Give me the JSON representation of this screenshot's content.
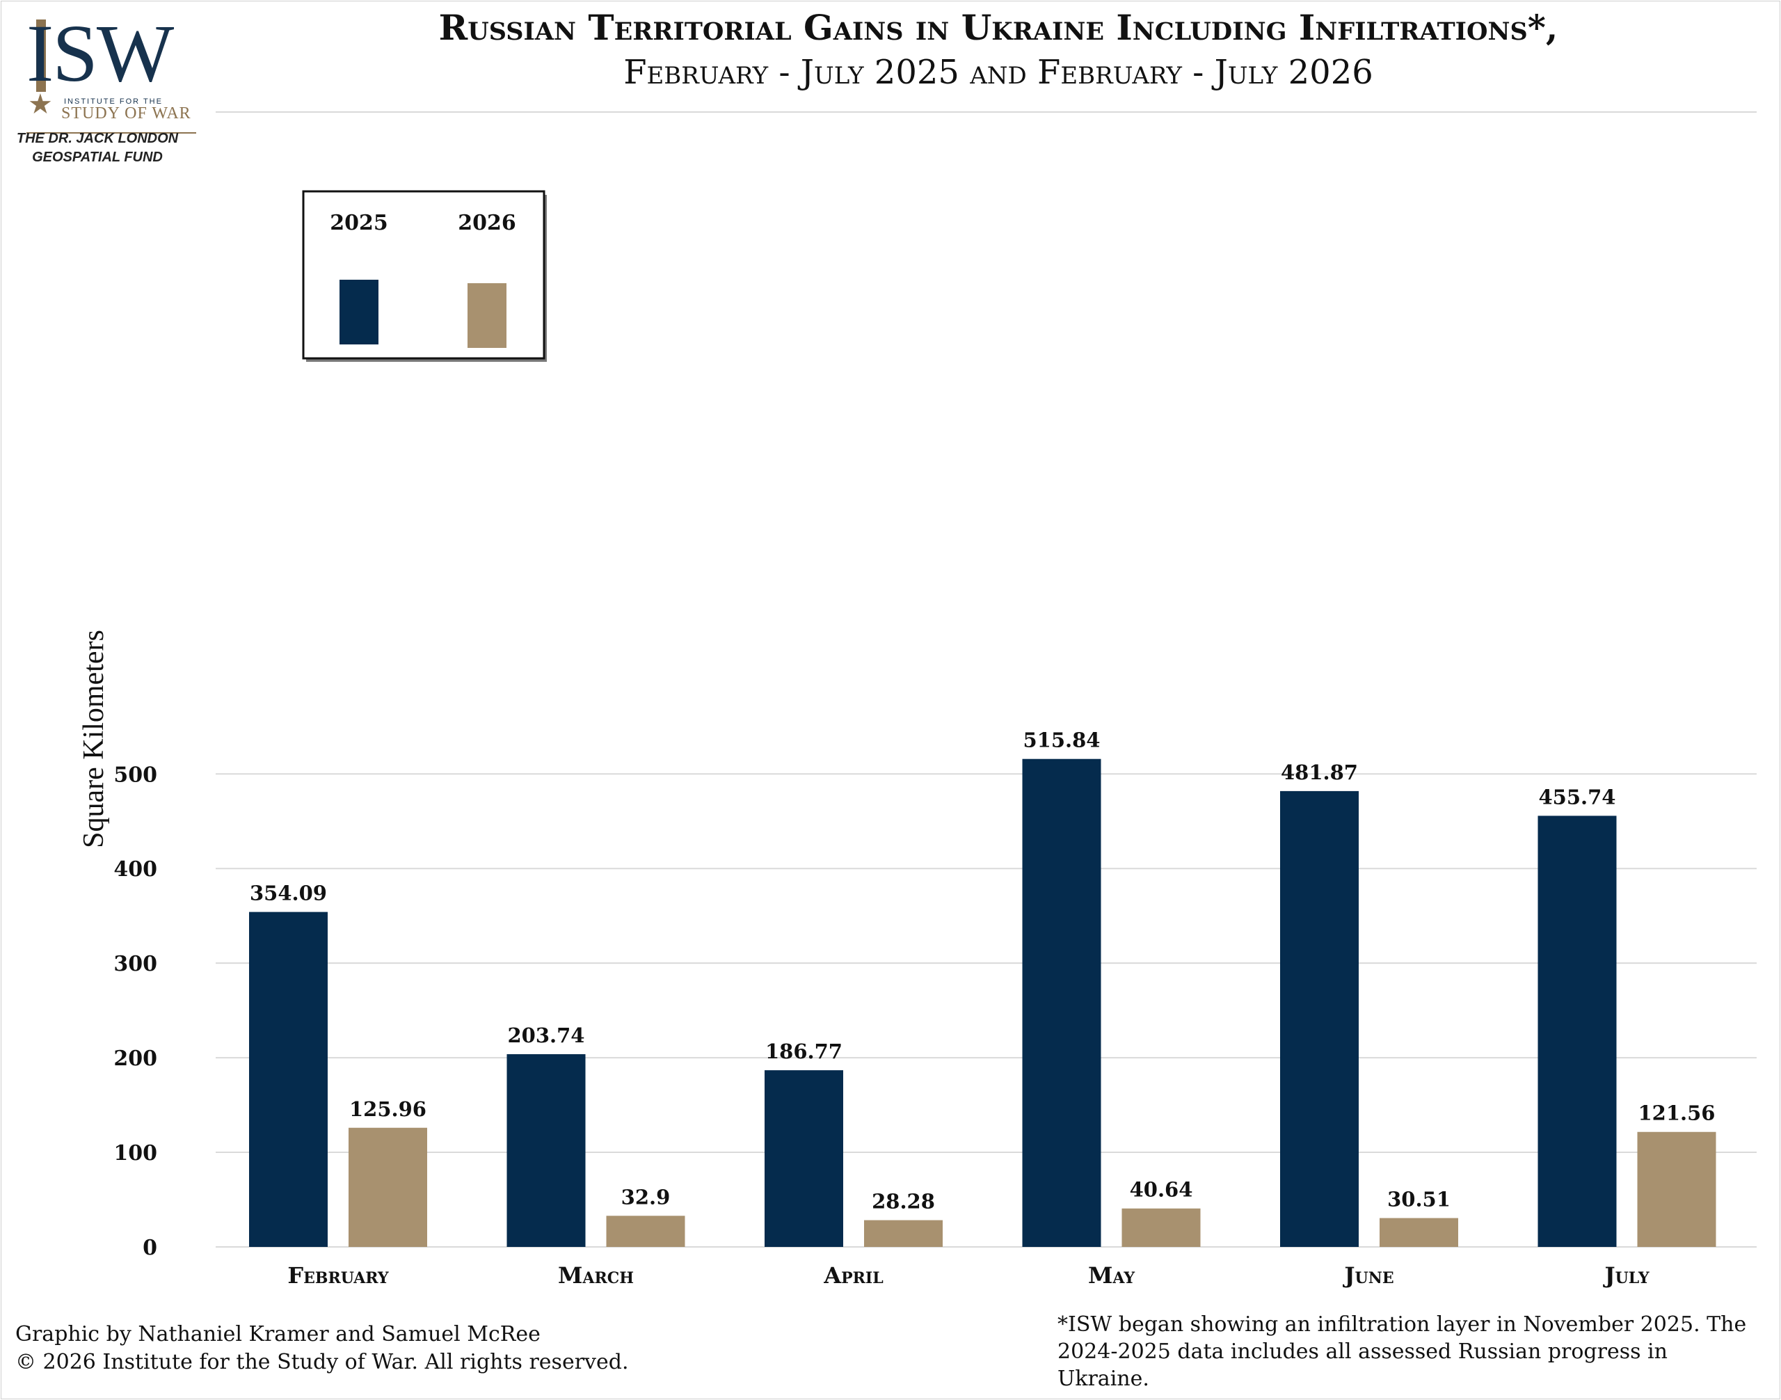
{
  "header": {
    "title": "Russian Territorial Gains in Ukraine Including Infiltrations*,",
    "subtitle": "February - July 2025 and February - July 2026"
  },
  "logo": {
    "mark": "ISW",
    "line1": "INSTITUTE FOR THE",
    "line2": "STUDY OF WAR",
    "fund": "THE DR. JACK LONDON GEOSPATIAL FUND",
    "star_icon": "star-icon"
  },
  "colors": {
    "series_2025": "#052b4d",
    "series_2026": "#a8916f",
    "grid": "#dadada"
  },
  "chart_data": {
    "type": "bar",
    "title": "Russian Territorial Gains in Ukraine Including Infiltrations*,",
    "subtitle": "February - July 2025 and February - July 2026",
    "xlabel": "",
    "ylabel": "Square Kilometers",
    "categories": [
      "February",
      "March",
      "April",
      "May",
      "June",
      "July"
    ],
    "series": [
      {
        "name": "2025",
        "values": [
          354.09,
          203.74,
          186.77,
          515.84,
          481.87,
          455.74
        ]
      },
      {
        "name": "2026",
        "values": [
          125.96,
          32.9,
          28.28,
          40.64,
          30.51,
          121.56
        ]
      }
    ],
    "value_labels": {
      "2025": [
        "354.09",
        "203.74",
        "186.77",
        "515.84",
        "481.87",
        "455.74"
      ],
      "2026": [
        "125.96",
        "32.9",
        "28.28",
        "40.64",
        "30.51",
        "121.56"
      ]
    },
    "ylim": [
      0,
      500
    ],
    "yticks": [
      0,
      100,
      200,
      300,
      400,
      500
    ],
    "grid": true,
    "legend_position": "top-left"
  },
  "footer": {
    "credit": "Graphic by Nathaniel Kramer and Samuel McRee",
    "copyright": "© 2026 Institute for the Study of War. All rights reserved.",
    "note": "*ISW began showing an infiltration layer in November 2025.  The 2024-2025 data includes all assessed Russian progress in Ukraine."
  }
}
